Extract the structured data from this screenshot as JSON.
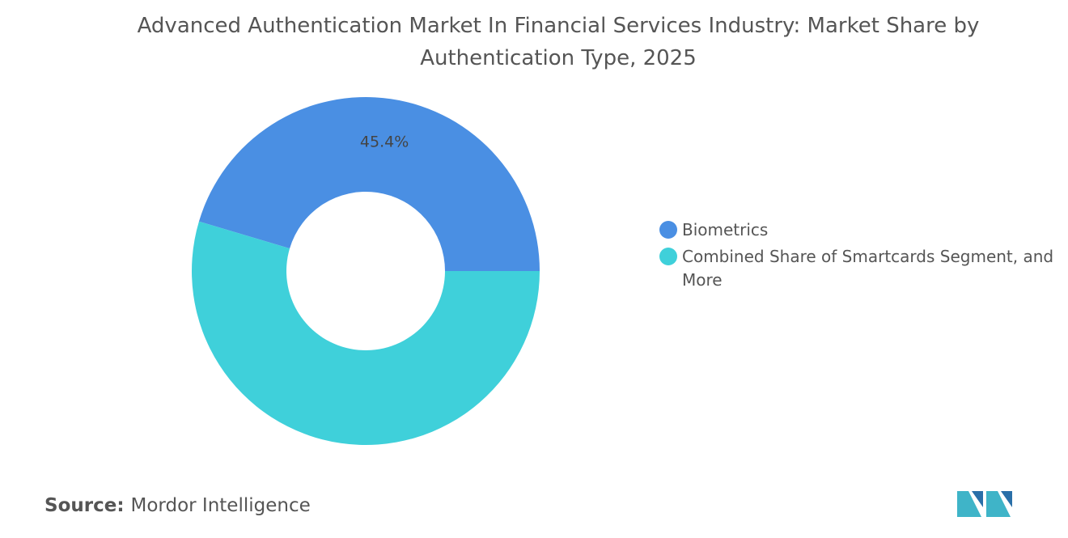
{
  "chart_data": {
    "type": "donut",
    "title": "Advanced Authentication Market In Financial Services Industry: Market Share by Authentication Type, 2025",
    "categories": [
      "Biometrics",
      "Combined Share of Smartcards Segment, and More"
    ],
    "values": [
      45.4,
      54.6
    ],
    "value_labels": [
      "45.4%",
      null
    ],
    "colors": [
      "#4a8fe3",
      "#3fd0da"
    ],
    "legend": "right"
  },
  "source": {
    "label": "Source:",
    "text": "Mordor Intelligence"
  }
}
